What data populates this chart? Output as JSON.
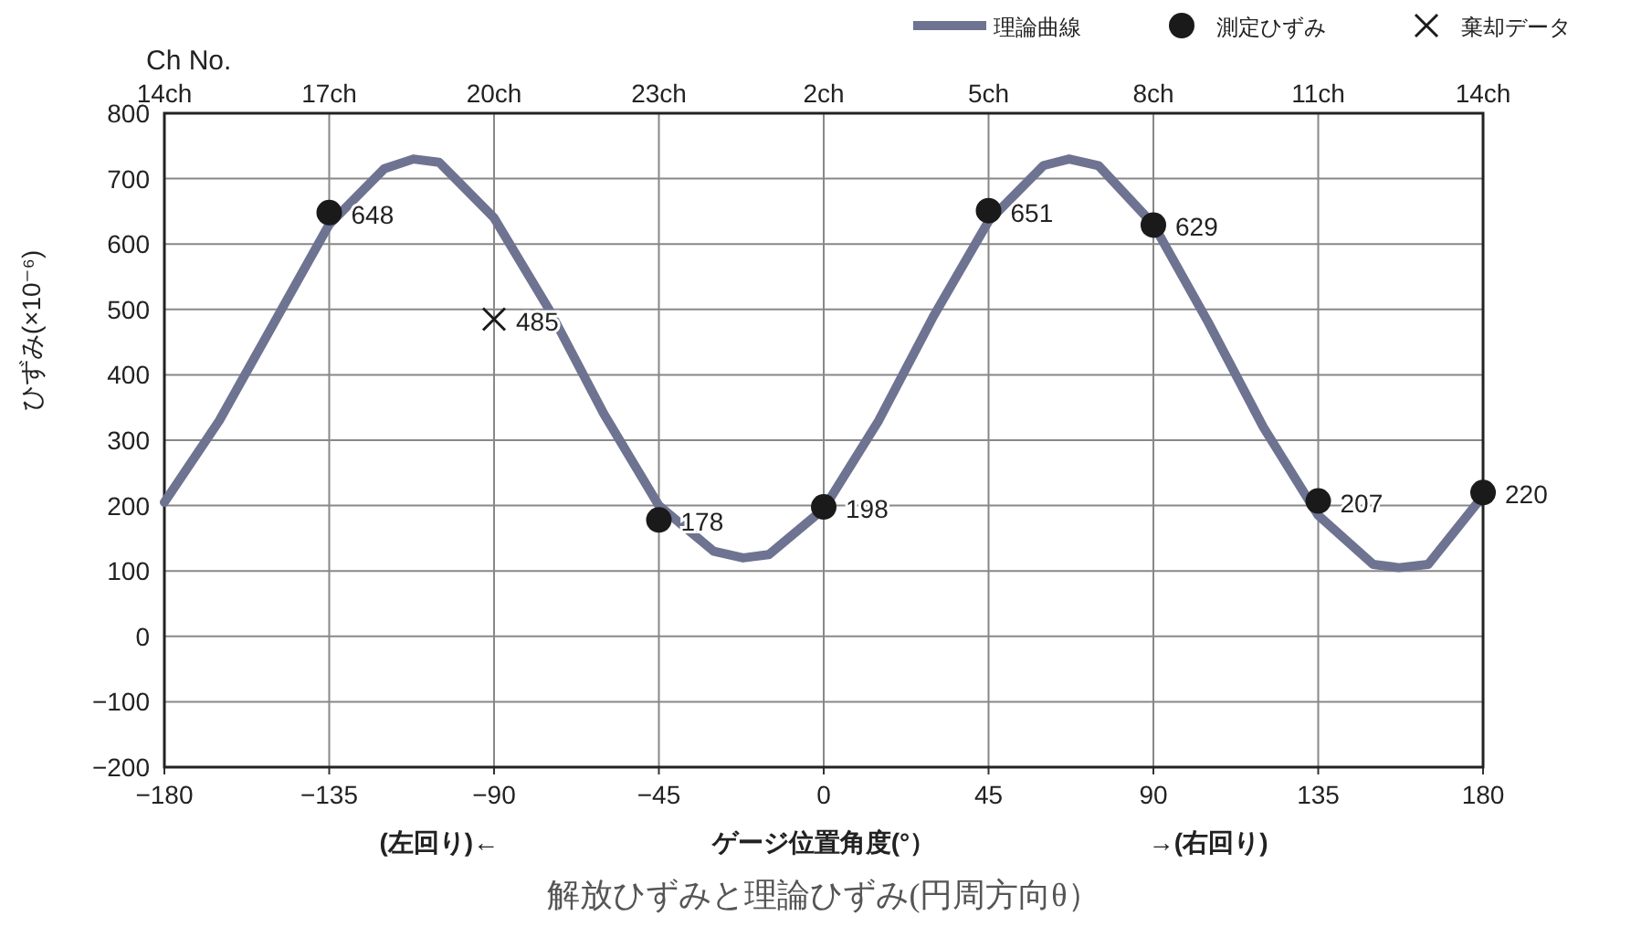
{
  "chart_data": {
    "type": "line",
    "title": "解放ひずみと理論ひずみ(円周方向θ）",
    "xlabel": "ゲージ位置角度(°）",
    "ylabel": "ひずみ(×10⁻⁶)",
    "x2label": "Ch No.",
    "annotations": [
      "(左回り)←",
      "→(右回り)",
      "14ch",
      "17ch",
      "20ch",
      "23ch",
      "2ch",
      "5ch",
      "8ch",
      "11ch",
      "14ch"
    ],
    "xlim": [
      -180,
      180
    ],
    "xticks": [
      -180,
      -135,
      -90,
      -45,
      0,
      45,
      90,
      135,
      180
    ],
    "ylim": [
      -200,
      800
    ],
    "yticks": [
      -200,
      -100,
      0,
      100,
      200,
      300,
      400,
      500,
      600,
      700,
      800
    ],
    "grid": true,
    "legend": "top right",
    "series": [
      {
        "name": "理論曲線",
        "type": "line",
        "color": "#6e7391",
        "marker": "none",
        "line_style": "solid",
        "x": [
          -180,
          -165,
          -150,
          -135,
          -120,
          -112,
          -105,
          -90,
          -75,
          -60,
          -45,
          -30,
          -22,
          -15,
          0,
          15,
          30,
          45,
          60,
          67,
          75,
          90,
          105,
          120,
          135,
          150,
          157,
          165,
          180
        ],
        "values": [
          205,
          330,
          480,
          630,
          715,
          730,
          725,
          640,
          500,
          340,
          200,
          130,
          120,
          125,
          195,
          330,
          490,
          635,
          720,
          730,
          720,
          630,
          480,
          320,
          185,
          110,
          105,
          110,
          215
        ]
      },
      {
        "name": "測定ひずみ",
        "type": "scatter",
        "color": "#1a1a1a",
        "marker": "circle",
        "data_labels": true,
        "x": [
          -135,
          -45,
          0,
          45,
          90,
          135,
          180
        ],
        "values": [
          648,
          178,
          198,
          651,
          629,
          207,
          220
        ]
      },
      {
        "name": "棄却データ",
        "type": "scatter",
        "color": "#1a1a1a",
        "marker": "cross",
        "data_labels": true,
        "x": [
          -90
        ],
        "values": [
          485
        ]
      }
    ]
  }
}
